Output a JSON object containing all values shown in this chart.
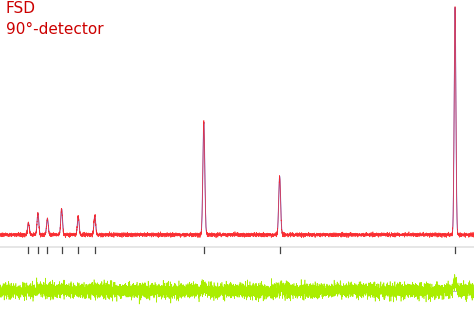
{
  "title_line1": "FSD",
  "title_line2": "90°-detector",
  "title_color": "#cc0000",
  "title_fontsize": 11,
  "bg_color": "#ffffff",
  "xlim": [
    0,
    1000
  ],
  "peak_positions": [
    60,
    80,
    100,
    130,
    165,
    200,
    430,
    590,
    960
  ],
  "peak_heights": [
    0.055,
    0.1,
    0.075,
    0.12,
    0.085,
    0.09,
    0.52,
    0.27,
    1.05
  ],
  "peak_widths": [
    1.8,
    1.8,
    1.8,
    1.8,
    1.8,
    1.8,
    2.0,
    2.0,
    1.8
  ],
  "tick_positions": [
    60,
    80,
    100,
    130,
    165,
    200,
    430,
    590,
    960
  ],
  "noise_level": 0.004,
  "baseline": 0.016,
  "red_color": "#ff2020",
  "blue_color": "#4466ee",
  "green_color": "#aaee00",
  "tick_color": "#444444",
  "line_color": "#999999"
}
